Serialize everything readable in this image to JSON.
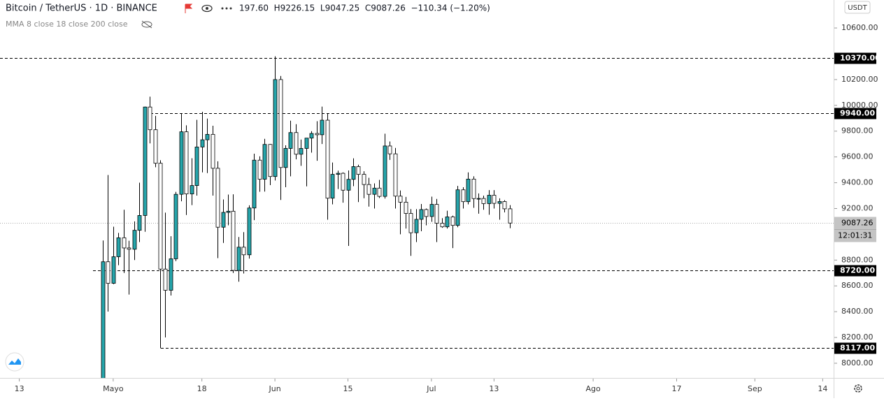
{
  "header": {
    "symbol": "Bitcoin / TetherUS · 1D · BINANCE",
    "ohlc_legend": "197.60  H9226.15  L9047.25  C9087.26  −110.34 (−1.20%)",
    "indicator": "MMA 8 close 18 close 200 close",
    "currency_button": "USDT"
  },
  "chart_data": {
    "type": "candlestick",
    "up_color": "#26a5ab",
    "down_color": "#ffffff",
    "border_color": "#000000",
    "open": [
      7753,
      8787,
      8620,
      8826,
      8973,
      8894,
      8884,
      9031,
      9146,
      9987,
      9811,
      9551,
      8730,
      8566,
      8810,
      9310,
      9795,
      9313,
      9378,
      9677,
      9733,
      9775,
      9512,
      9055,
      9170,
      9179,
      8720,
      8900,
      8841,
      9204,
      9575,
      9427,
      9697,
      9448,
      10200,
      9518,
      9666,
      9789,
      9621,
      9666,
      9746,
      9782,
      9772,
      9885,
      9280,
      9465,
      9473,
      9342,
      9426,
      9525,
      9465,
      9386,
      9310,
      9358,
      9294,
      9685,
      9624,
      9296,
      9249,
      9162,
      9012,
      9116,
      9192,
      9138,
      9232,
      9086,
      9058,
      9135,
      9069,
      9345,
      9253,
      9428,
      9277,
      9278,
      9238,
      9303,
      9240,
      9254,
      9197.6
    ],
    "high": [
      8952,
      9460,
      9059,
      9011,
      9190,
      8950,
      9100,
      9400,
      9990,
      10067,
      9918,
      9574,
      9168,
      8985,
      9329,
      9939,
      9845,
      9590,
      9888,
      9950,
      9897,
      9842,
      9566,
      9270,
      9308,
      9310,
      8979,
      9017,
      9225,
      9625,
      9605,
      9740,
      9700,
      10380,
      10228,
      9690,
      9881,
      9854,
      9735,
      9740,
      9800,
      9877,
      9990,
      9938,
      9557,
      9494,
      9480,
      9495,
      9589,
      9540,
      9489,
      9438,
      9395,
      9422,
      9780,
      9720,
      9670,
      9340,
      9290,
      9196,
      9195,
      9235,
      9200,
      9292,
      9274,
      9125,
      9183,
      9145,
      9375,
      9365,
      9480,
      9450,
      9317,
      9300,
      9343,
      9343,
      9279,
      9265,
      9226.15
    ],
    "low": [
      7716,
      8401,
      8613,
      8760,
      8700,
      8533,
      8800,
      8940,
      9020,
      9705,
      9520,
      8117,
      8200,
      8525,
      8792,
      9256,
      9150,
      9226,
      9300,
      9480,
      9475,
      9300,
      8815,
      8933,
      9070,
      8700,
      8632,
      8696,
      8812,
      9110,
      9330,
      9331,
      9381,
      9417,
      9266,
      9365,
      9450,
      9581,
      9531,
      9372,
      9633,
      9570,
      9700,
      9113,
      9232,
      9351,
      9245,
      8910,
      9373,
      9250,
      9280,
      9215,
      9200,
      9281,
      9277,
      9577,
      9200,
      9000,
      9045,
      8833,
      8940,
      9024,
      9070,
      9097,
      8940,
      9050,
      9045,
      8893,
      9055,
      9200,
      9232,
      9205,
      9160,
      9190,
      9152,
      9200,
      9113,
      9170,
      9047.25
    ],
    "close": [
      8787,
      8620,
      8826,
      8973,
      8894,
      8884,
      9031,
      9146,
      9987,
      9811,
      9551,
      8730,
      8566,
      8810,
      9310,
      9795,
      9313,
      9378,
      9677,
      9733,
      9775,
      9512,
      9055,
      9170,
      9179,
      8720,
      8900,
      8841,
      9204,
      9575,
      9427,
      9697,
      9448,
      10200,
      9518,
      9666,
      9789,
      9621,
      9666,
      9746,
      9782,
      9772,
      9885,
      9280,
      9465,
      9473,
      9342,
      9426,
      9525,
      9465,
      9386,
      9310,
      9358,
      9294,
      9685,
      9624,
      9296,
      9249,
      9162,
      9012,
      9116,
      9192,
      9138,
      9232,
      9086,
      9058,
      9135,
      9069,
      9345,
      9253,
      9428,
      9277,
      9278,
      9238,
      9303,
      9240,
      9254,
      9197.6,
      9087.26
    ],
    "xlim": [
      -19.7,
      140.1
    ],
    "xticks": [
      {
        "value": -16,
        "label": "13"
      },
      {
        "value": 2,
        "label": "Mayo"
      },
      {
        "value": 19,
        "label": "18"
      },
      {
        "value": 33,
        "label": "Jun"
      },
      {
        "value": 47,
        "label": "15"
      },
      {
        "value": 63,
        "label": "Jul"
      },
      {
        "value": 75,
        "label": "13"
      },
      {
        "value": 94,
        "label": "Ago"
      },
      {
        "value": 110,
        "label": "17"
      },
      {
        "value": 125,
        "label": "Sep"
      },
      {
        "value": 138,
        "label": "14"
      }
    ],
    "ylim": [
      7886,
      10817
    ],
    "yticks": [
      {
        "value": 10600,
        "label": "10600.00"
      },
      {
        "value": 10200,
        "label": "10200.00"
      },
      {
        "value": 10000,
        "label": "10000.00"
      },
      {
        "value": 9800,
        "label": "9800.00"
      },
      {
        "value": 9600,
        "label": "9600.00"
      },
      {
        "value": 9400,
        "label": "9400.00"
      },
      {
        "value": 9200,
        "label": "9200.00"
      },
      {
        "value": 8800,
        "label": "8800.00"
      },
      {
        "value": 8600,
        "label": "8600.00"
      },
      {
        "value": 8400,
        "label": "8400.00"
      },
      {
        "value": 8200,
        "label": "8200.00"
      },
      {
        "value": 8000,
        "label": "8000.00"
      }
    ],
    "horizontal_lines": [
      {
        "value": 10370,
        "label": "10370.00"
      },
      {
        "value": 9940,
        "label": "9940.00"
      },
      {
        "value": 8720,
        "label": "8720.00"
      },
      {
        "value": 8117,
        "label": "8117.00"
      }
    ],
    "last_price": {
      "value": 9087.26,
      "label": "9087.26",
      "countdown": "12:01:31"
    }
  }
}
